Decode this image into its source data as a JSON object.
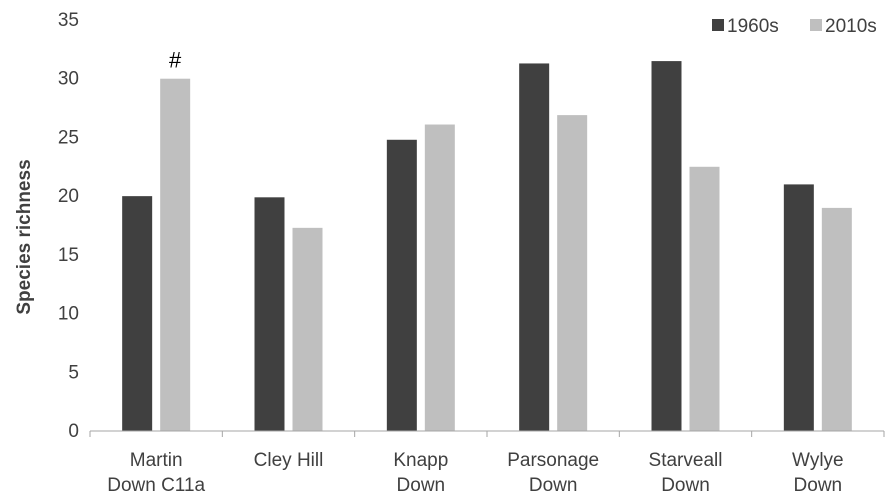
{
  "chart_data": {
    "type": "bar",
    "title": "",
    "xlabel": "",
    "ylabel": "Species richness",
    "ylim": [
      0,
      35
    ],
    "yticks": [
      0,
      5,
      10,
      15,
      20,
      25,
      30,
      35
    ],
    "grid": false,
    "legend_position": "top-right",
    "categories": [
      [
        "Martin",
        "Down C11a"
      ],
      [
        "Cley Hill"
      ],
      [
        "Knapp",
        "Down"
      ],
      [
        "Parsonage",
        "Down"
      ],
      [
        "Starveall",
        "Down"
      ],
      [
        "Wylye",
        "Down"
      ]
    ],
    "series": [
      {
        "name": "1960s",
        "color": "#404040",
        "values": [
          20,
          19.9,
          24.8,
          31.3,
          31.5,
          21
        ]
      },
      {
        "name": "2010s",
        "color": "#bfbfbf",
        "values": [
          30,
          17.3,
          26.1,
          26.9,
          22.5,
          19
        ]
      }
    ],
    "annotations": [
      {
        "text": "#",
        "category_index": 0,
        "series_index": 1
      }
    ]
  }
}
